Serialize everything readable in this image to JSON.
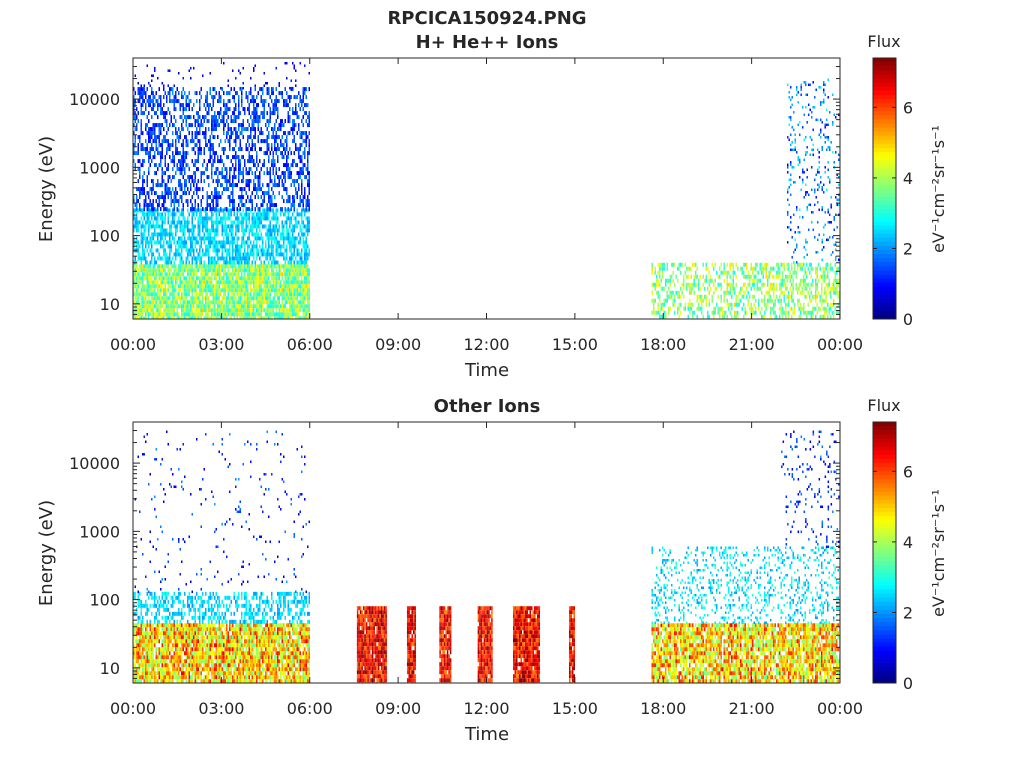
{
  "figure": {
    "title_line1": "RPCICA150924.PNG"
  },
  "chart_data": [
    {
      "type": "heatmap",
      "title": "H+ He++ Ions",
      "xlabel": "Time",
      "ylabel": "Energy (eV)",
      "x_ticks": [
        "00:00",
        "03:00",
        "06:00",
        "09:00",
        "12:00",
        "15:00",
        "18:00",
        "21:00",
        "00:00"
      ],
      "xlim_hours": [
        0,
        24
      ],
      "y_scale": "log",
      "ylim": [
        6,
        40000
      ],
      "y_ticks": [
        10,
        100,
        1000,
        10000
      ],
      "y_tick_labels": [
        "10",
        "100",
        "1000",
        "10000"
      ],
      "colorbar": {
        "title": "Flux",
        "range": [
          0,
          7.4
        ],
        "ticks": [
          0,
          2,
          4,
          6
        ],
        "tick_labels": [
          "0",
          "2",
          "4",
          "6"
        ],
        "unit_label": "eV⁻¹cm⁻²sr⁻¹s⁻¹",
        "colormap": "jet"
      },
      "regions": [
        {
          "t_start": 0.0,
          "t_end": 6.0,
          "e_min": 6,
          "e_max": 38,
          "flux_min": 2.8,
          "flux_max": 4.8,
          "density": 0.9
        },
        {
          "t_start": 0.0,
          "t_end": 6.0,
          "e_min": 38,
          "e_max": 250,
          "flux_min": 2.0,
          "flux_max": 3.0,
          "density": 0.65
        },
        {
          "t_start": 0.0,
          "t_end": 6.0,
          "e_min": 250,
          "e_max": 15000,
          "flux_min": 0.8,
          "flux_max": 2.0,
          "density": 0.45
        },
        {
          "t_start": 0.0,
          "t_end": 6.0,
          "e_min": 15000,
          "e_max": 35000,
          "flux_min": 0.6,
          "flux_max": 1.2,
          "density": 0.05
        },
        {
          "t_start": 17.6,
          "t_end": 24.0,
          "e_min": 6,
          "e_max": 40,
          "flux_min": 2.8,
          "flux_max": 4.8,
          "density": 0.45
        },
        {
          "t_start": 22.2,
          "t_end": 24.0,
          "e_min": 40,
          "e_max": 20000,
          "flux_min": 0.8,
          "flux_max": 2.8,
          "density": 0.12
        }
      ]
    },
    {
      "type": "heatmap",
      "title": "Other Ions",
      "xlabel": "Time",
      "ylabel": "Energy (eV)",
      "x_ticks": [
        "00:00",
        "03:00",
        "06:00",
        "09:00",
        "12:00",
        "15:00",
        "18:00",
        "21:00",
        "00:00"
      ],
      "xlim_hours": [
        0,
        24
      ],
      "y_scale": "log",
      "ylim": [
        6,
        40000
      ],
      "y_ticks": [
        10,
        100,
        1000,
        10000
      ],
      "y_tick_labels": [
        "10",
        "100",
        "1000",
        "10000"
      ],
      "colorbar": {
        "title": "Flux",
        "range": [
          0,
          7.4
        ],
        "ticks": [
          0,
          2,
          4,
          6
        ],
        "tick_labels": [
          "0",
          "2",
          "4",
          "6"
        ],
        "unit_label": "eV⁻¹cm⁻²sr⁻¹s⁻¹",
        "colormap": "jet"
      },
      "regions": [
        {
          "t_start": 0.0,
          "t_end": 6.0,
          "e_min": 6,
          "e_max": 45,
          "flux_min": 3.5,
          "flux_max": 6.3,
          "density": 0.9
        },
        {
          "t_start": 0.0,
          "t_end": 6.0,
          "e_min": 45,
          "e_max": 130,
          "flux_min": 2.0,
          "flux_max": 3.0,
          "density": 0.45
        },
        {
          "t_start": 0.0,
          "t_end": 6.0,
          "e_min": 130,
          "e_max": 30000,
          "flux_min": 0.6,
          "flux_max": 2.0,
          "density": 0.03
        },
        {
          "t_start": 7.6,
          "t_end": 8.6,
          "e_min": 6,
          "e_max": 80,
          "flux_min": 5.5,
          "flux_max": 7.4,
          "density": 0.95
        },
        {
          "t_start": 9.3,
          "t_end": 9.6,
          "e_min": 6,
          "e_max": 80,
          "flux_min": 5.5,
          "flux_max": 7.4,
          "density": 0.95
        },
        {
          "t_start": 10.4,
          "t_end": 10.8,
          "e_min": 6,
          "e_max": 80,
          "flux_min": 5.5,
          "flux_max": 7.4,
          "density": 0.95
        },
        {
          "t_start": 11.7,
          "t_end": 12.2,
          "e_min": 6,
          "e_max": 80,
          "flux_min": 5.5,
          "flux_max": 7.4,
          "density": 0.95
        },
        {
          "t_start": 12.9,
          "t_end": 13.8,
          "e_min": 6,
          "e_max": 80,
          "flux_min": 5.5,
          "flux_max": 7.4,
          "density": 0.95
        },
        {
          "t_start": 14.8,
          "t_end": 15.0,
          "e_min": 6,
          "e_max": 80,
          "flux_min": 5.5,
          "flux_max": 7.4,
          "density": 0.95
        },
        {
          "t_start": 17.6,
          "t_end": 24.0,
          "e_min": 6,
          "e_max": 45,
          "flux_min": 3.5,
          "flux_max": 6.3,
          "density": 0.85
        },
        {
          "t_start": 17.6,
          "t_end": 24.0,
          "e_min": 45,
          "e_max": 600,
          "flux_min": 2.0,
          "flux_max": 3.2,
          "density": 0.2
        },
        {
          "t_start": 22.0,
          "t_end": 24.0,
          "e_min": 600,
          "e_max": 30000,
          "flux_min": 0.6,
          "flux_max": 2.0,
          "density": 0.08
        }
      ]
    }
  ]
}
